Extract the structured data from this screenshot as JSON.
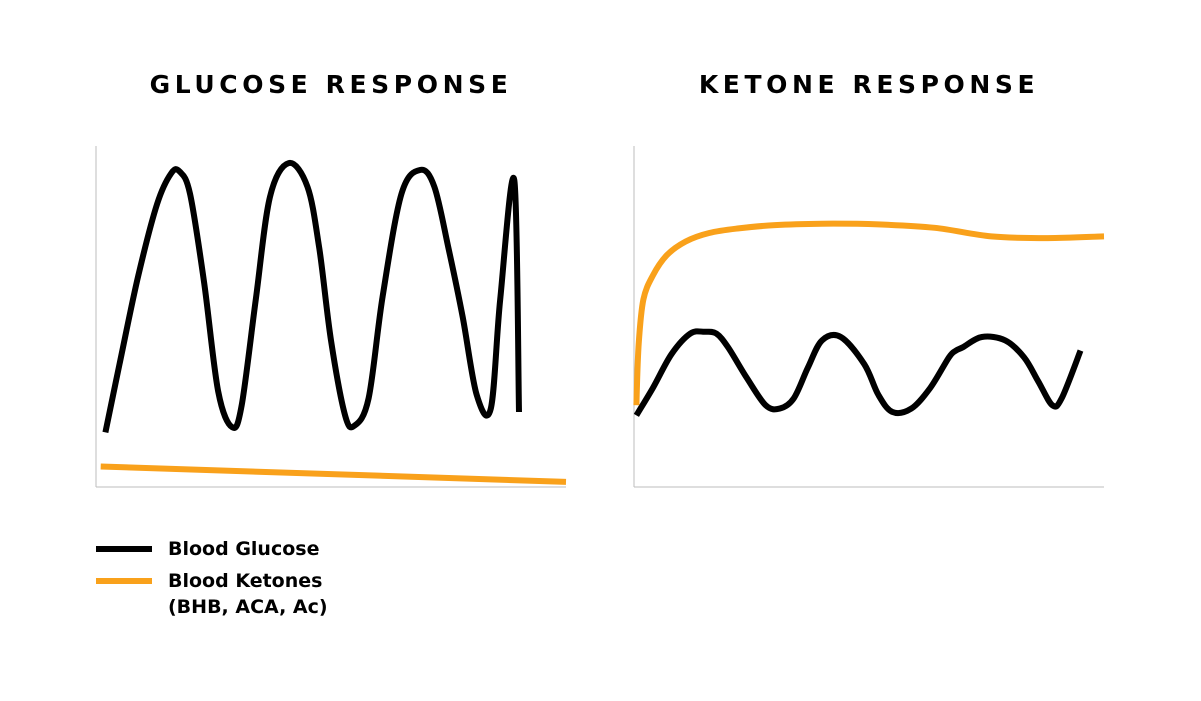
{
  "colors": {
    "glucose": "#000000",
    "ketones": "#f9a11b",
    "axis": "#bdbdbd"
  },
  "legend": {
    "glucose_label": "Blood Glucose",
    "ketones_label": "Blood Ketones",
    "ketones_note": "(BHB, ACA, Ac)"
  },
  "chart_data": [
    {
      "type": "line",
      "title": "GLUCOSE RESPONSE",
      "xlabel": "",
      "ylabel": "",
      "xlim": [
        0,
        100
      ],
      "ylim": [
        0,
        100
      ],
      "grid": false,
      "series": [
        {
          "name": "Blood Glucose",
          "color": "#000000",
          "x": [
            2,
            5,
            9,
            13,
            16,
            17.8,
            20,
            23,
            26,
            29,
            31,
            34,
            37,
            41,
            45,
            47.5,
            50,
            53,
            55,
            58,
            61,
            65,
            69,
            72,
            75,
            78,
            81,
            84,
            86,
            89,
            90
          ],
          "y": [
            16,
            36,
            62,
            83,
            92,
            92.5,
            86,
            60,
            28,
            17.5,
            24,
            55,
            85,
            95,
            88,
            70,
            43,
            21,
            18,
            26,
            56,
            86,
            93,
            88,
            70,
            50,
            27,
            23,
            55,
            90,
            22
          ]
        },
        {
          "name": "Blood Ketones",
          "color": "#f9a11b",
          "x": [
            1,
            100
          ],
          "y": [
            6,
            1.5
          ]
        }
      ]
    },
    {
      "type": "line",
      "title": "KETONE RESPONSE",
      "xlabel": "",
      "ylabel": "",
      "xlim": [
        0,
        100
      ],
      "ylim": [
        0,
        100
      ],
      "grid": false,
      "series": [
        {
          "name": "Blood Glucose",
          "color": "#000000",
          "x": [
            0.5,
            4,
            8,
            12,
            15,
            17.5,
            20,
            24,
            28,
            31,
            34,
            37,
            40,
            44,
            49,
            52,
            55,
            59,
            63,
            67,
            68.5,
            70,
            74,
            79,
            83,
            86,
            89,
            91,
            95
          ],
          "y": [
            21,
            29,
            39,
            45,
            45.5,
            45,
            41,
            32,
            24,
            23,
            26,
            35,
            43,
            44,
            36,
            27,
            22,
            23,
            29,
            38,
            40,
            41,
            44,
            43,
            38,
            31,
            24,
            26,
            40
          ]
        },
        {
          "name": "Blood Ketones",
          "color": "#f9a11b",
          "x": [
            0.5,
            1,
            2,
            4,
            7,
            11,
            16,
            22,
            30,
            40,
            52,
            64,
            76,
            88,
            100
          ],
          "y": [
            24,
            42,
            55,
            62,
            68,
            72,
            74.5,
            75.8,
            76.8,
            77.2,
            77,
            76,
            73.5,
            73,
            73.5
          ]
        }
      ]
    }
  ]
}
